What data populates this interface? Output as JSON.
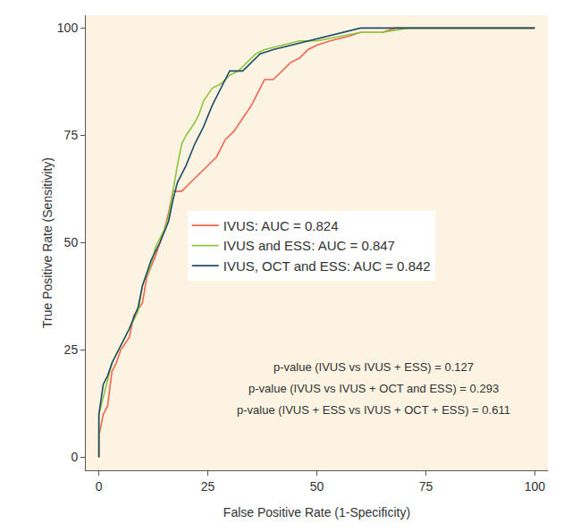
{
  "chart_data": {
    "type": "line",
    "x_label": "False Positive Rate (1-Specificity)",
    "y_label": "True Positive Rate (Sensitivity)",
    "xlim": [
      -3,
      103
    ],
    "ylim": [
      -3,
      103
    ],
    "xticks": [
      0,
      25,
      50,
      75,
      100
    ],
    "yticks": [
      0,
      25,
      50,
      75,
      100
    ],
    "grid": false,
    "legend": "center",
    "series": [
      {
        "name": "IVUS: AUC = 0.824",
        "color": "#f0674f",
        "x": [
          0,
          0,
          1,
          2,
          3,
          4,
          5,
          7,
          8,
          10,
          11,
          13,
          15,
          16,
          17,
          19,
          21,
          23,
          25,
          27,
          29,
          31,
          33,
          35,
          37,
          38,
          40,
          42,
          44,
          46,
          48,
          50,
          53,
          57,
          60,
          65,
          68,
          100
        ],
        "values": [
          0,
          5,
          10,
          12,
          20,
          22,
          25,
          28,
          33,
          36,
          42,
          47,
          53,
          57,
          62,
          62,
          64,
          66,
          68,
          70,
          74,
          76,
          79,
          82,
          86,
          88,
          88,
          90,
          92,
          93,
          95,
          96,
          97,
          98,
          99,
          99,
          100,
          100
        ]
      },
      {
        "name": "IVUS and ESS: AUC = 0.847",
        "color": "#8dc63f",
        "x": [
          0,
          0,
          1,
          2,
          3,
          5,
          7,
          9,
          10,
          12,
          13,
          15,
          16,
          17,
          18,
          19,
          20,
          22,
          23,
          24,
          26,
          28,
          30,
          32,
          34,
          36,
          38,
          42,
          46,
          50,
          55,
          60,
          65,
          71,
          100
        ],
        "values": [
          0,
          10,
          14,
          18,
          22,
          26,
          30,
          34,
          40,
          45,
          49,
          53,
          56,
          62,
          68,
          73,
          75,
          78,
          80,
          83,
          86,
          87,
          89,
          90,
          92,
          94,
          95,
          96,
          97,
          97,
          98,
          99,
          99,
          100,
          100
        ]
      },
      {
        "name": "IVUS, OCT and ESS: AUC = 0.842",
        "color": "#1f4e6b",
        "x": [
          0,
          0,
          1,
          2,
          3,
          5,
          7,
          9,
          10,
          12,
          14,
          16,
          17,
          18,
          20,
          22,
          24,
          26,
          28,
          30,
          33,
          35,
          37,
          40,
          44,
          48,
          52,
          56,
          60,
          100
        ],
        "values": [
          0,
          10,
          17,
          19,
          22,
          26,
          30,
          35,
          40,
          46,
          50,
          55,
          60,
          64,
          68,
          73,
          77,
          82,
          86,
          90,
          90,
          92,
          94,
          95,
          96,
          97,
          98,
          99,
          100,
          100
        ]
      }
    ],
    "annotations": [
      "p-value (IVUS vs IVUS + ESS) = 0.127",
      "p-value (IVUS vs IVUS + OCT and ESS) = 0.293",
      "p-value (IVUS + ESS vs IVUS + OCT + ESS) = 0.611"
    ]
  }
}
